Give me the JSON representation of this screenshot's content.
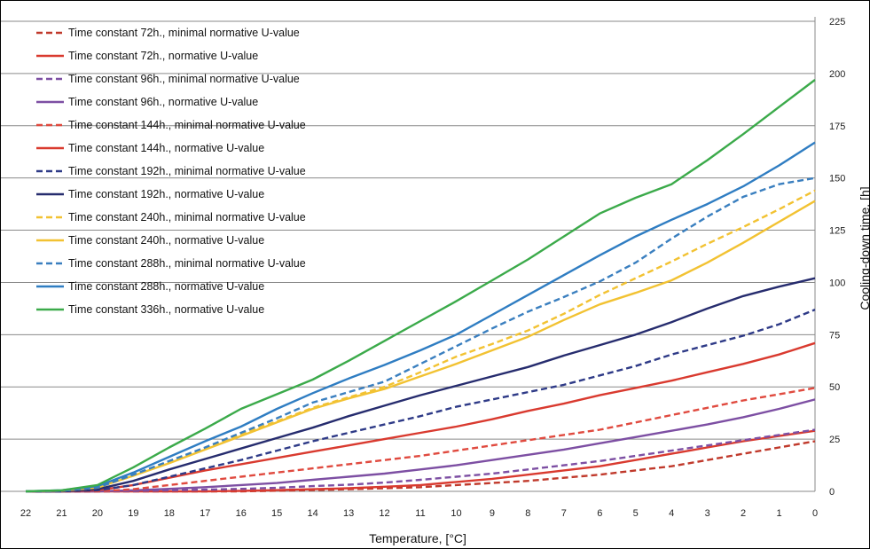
{
  "chart_data": {
    "type": "line",
    "xlabel": "Temperature, [°C]",
    "ylabel": "Cooling-down time, [h]",
    "x": [
      22,
      21,
      20,
      19,
      18,
      17,
      16,
      15,
      14,
      13,
      12,
      11,
      10,
      9,
      8,
      7,
      6,
      5,
      4,
      3,
      2,
      1,
      0
    ],
    "x_ticks": [
      "22",
      "21",
      "20",
      "19",
      "18",
      "17",
      "16",
      "15",
      "14",
      "13",
      "12",
      "11",
      "10",
      "9",
      "8",
      "7",
      "6",
      "5",
      "4",
      "3",
      "2",
      "1",
      "0"
    ],
    "y_ticks": [
      "0",
      "25",
      "50",
      "75",
      "100",
      "125",
      "150",
      "175",
      "200",
      "225"
    ],
    "xlim": [
      22,
      0
    ],
    "ylim": [
      0,
      225
    ],
    "x_axis_reversed": true,
    "y_axis_position": "right",
    "horizontal_grid": true,
    "legend_position": "top-left",
    "series": [
      {
        "name": "Time constant 72h., minimal normative U-value",
        "color": "#C0392B",
        "dashed": true,
        "values": [
          0,
          0,
          0,
          0,
          0,
          0,
          0,
          0.3,
          0.6,
          1,
          1.5,
          2,
          3,
          4,
          5,
          6.5,
          8,
          10,
          12,
          15,
          18,
          21,
          24
        ]
      },
      {
        "name": "Time constant 72h., normative U-value",
        "color": "#D93A2F",
        "dashed": false,
        "values": [
          0,
          0,
          0,
          0,
          0,
          0,
          0.2,
          0.6,
          1,
          1.5,
          2.2,
          3,
          4.5,
          6,
          8,
          10,
          12,
          15,
          18,
          21,
          24,
          26.5,
          29
        ]
      },
      {
        "name": "Time constant 96h., minimal normative U-value",
        "color": "#7D4FA3",
        "dashed": true,
        "values": [
          0,
          0,
          0,
          0.2,
          0.5,
          0.8,
          1.2,
          1.7,
          2.5,
          3.2,
          4.2,
          5.5,
          7,
          8.5,
          10.5,
          12.5,
          14.5,
          17,
          19.5,
          22,
          24.5,
          27,
          29.5
        ]
      },
      {
        "name": "Time constant 96h., normative U-value",
        "color": "#7D4FA3",
        "dashed": false,
        "values": [
          0,
          0,
          0,
          0.5,
          1.2,
          2,
          3,
          4,
          5.5,
          7,
          8.5,
          10.5,
          12.5,
          15,
          17.5,
          20,
          23,
          26,
          29,
          32,
          35.5,
          39.5,
          44
        ]
      },
      {
        "name": "Time constant 144h., minimal normative U-value",
        "color": "#E04A3F",
        "dashed": true,
        "values": [
          0,
          0,
          0,
          1,
          3,
          5,
          7,
          9,
          11,
          13,
          15,
          17,
          19.5,
          22,
          24.5,
          27,
          29.5,
          33,
          36.5,
          40,
          43.5,
          46.5,
          49.5
        ]
      },
      {
        "name": "Time constant 144h., normative U-value",
        "color": "#D93A2F",
        "dashed": false,
        "values": [
          0,
          0,
          0.5,
          3,
          6.5,
          10,
          13,
          16,
          19,
          22,
          25,
          28,
          31,
          34.5,
          38.5,
          42,
          46,
          49.5,
          53,
          57,
          61,
          65.5,
          71
        ]
      },
      {
        "name": "Time constant 192h., minimal normative U-value",
        "color": "#2E3A87",
        "dashed": true,
        "values": [
          0,
          0,
          0.5,
          3,
          7,
          11,
          15,
          19.5,
          24,
          28,
          32,
          36,
          40.5,
          44,
          47.5,
          51,
          55.5,
          60,
          65.5,
          70,
          74.5,
          80,
          87
        ]
      },
      {
        "name": "Time constant 192h., normative U-value",
        "color": "#262C6E",
        "dashed": false,
        "values": [
          0,
          0,
          1,
          5,
          10.5,
          15.5,
          20.5,
          25.5,
          30.5,
          36,
          41,
          46,
          50.5,
          55,
          59.5,
          65,
          70,
          75,
          81,
          87.5,
          93.5,
          98,
          102
        ]
      },
      {
        "name": "Time constant 240h., minimal normative U-value",
        "color": "#F2C232",
        "dashed": true,
        "values": [
          0,
          0.3,
          1.8,
          7.5,
          14,
          20.5,
          27.5,
          33.5,
          40,
          45,
          50,
          57,
          64.5,
          70.5,
          77,
          85,
          94,
          102,
          110,
          118.5,
          126.5,
          135,
          144
        ]
      },
      {
        "name": "Time constant 240h., normative U-value",
        "color": "#F2C232",
        "dashed": false,
        "values": [
          0,
          0.3,
          1.8,
          7.5,
          13.5,
          20,
          26.5,
          33,
          39.5,
          44.5,
          49,
          55,
          61,
          67.5,
          74,
          82,
          89.5,
          95,
          101,
          109.5,
          119,
          129,
          139
        ]
      },
      {
        "name": "Time constant 288h., minimal normative U-value",
        "color": "#3A7FBF",
        "dashed": true,
        "values": [
          0,
          0.3,
          1.8,
          8,
          14.5,
          21,
          28,
          35,
          42.5,
          47.5,
          52.5,
          61,
          69.5,
          78,
          86,
          93,
          100.5,
          109.5,
          121,
          131.5,
          141,
          147,
          150
        ]
      },
      {
        "name": "Time constant 288h., normative U-value",
        "color": "#2F7DC2",
        "dashed": false,
        "values": [
          0,
          0.5,
          2.5,
          9,
          16.5,
          24,
          31,
          39.5,
          47,
          54,
          60.5,
          67.5,
          75,
          84.5,
          94,
          103.5,
          113,
          122,
          130,
          137.5,
          146,
          156,
          167
        ]
      },
      {
        "name": "Time constant 336h., normative U-value",
        "color": "#3BAA4A",
        "dashed": false,
        "values": [
          0,
          0.5,
          3,
          11.5,
          21,
          30,
          39.5,
          46.5,
          53.5,
          62.5,
          72,
          81.5,
          91,
          101,
          111,
          122,
          133,
          140.5,
          147,
          158.5,
          171,
          184,
          197
        ]
      }
    ]
  }
}
